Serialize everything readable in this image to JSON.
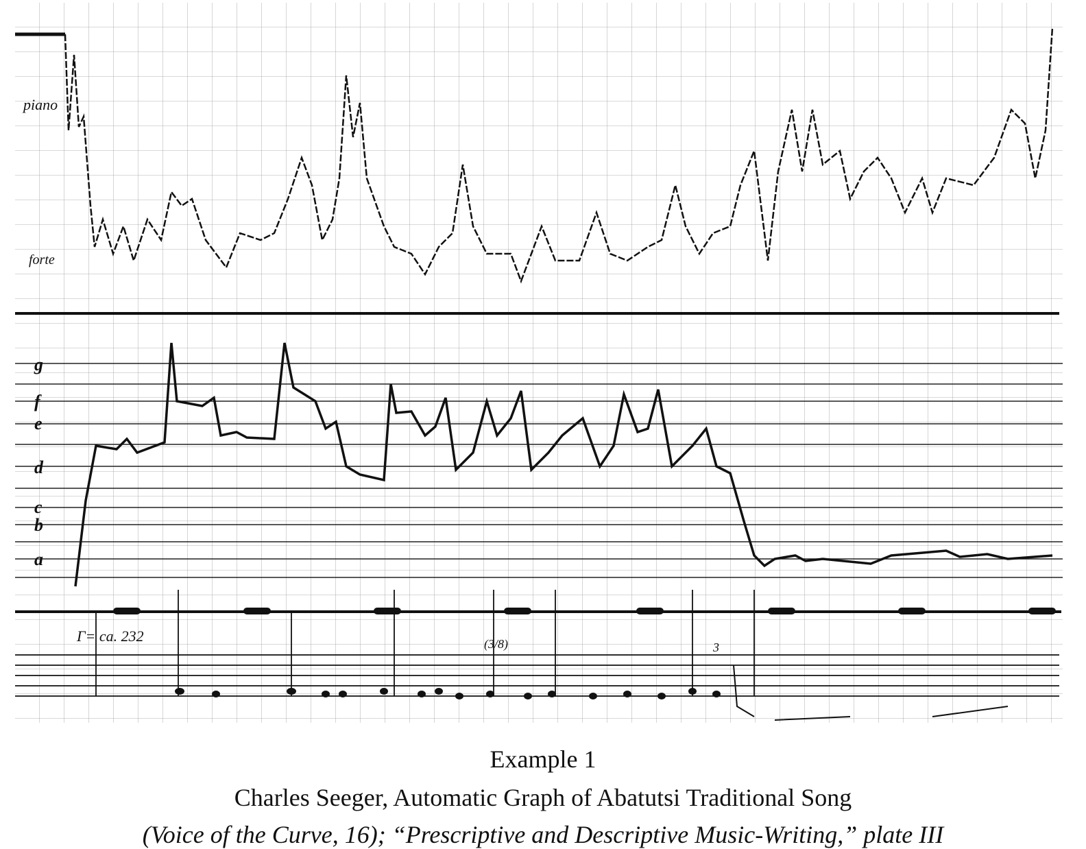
{
  "figure": {
    "dynamics_labels": [
      "piano",
      "forte"
    ],
    "pitch_labels": [
      "g",
      "f",
      "e",
      "d",
      "c",
      "b",
      "a"
    ],
    "tempo": "Γ= ca. 232",
    "time_signature": "(3/8)",
    "triplet": "3"
  },
  "caption": {
    "title": "Example 1",
    "lines": [
      "Charles Seeger, Automatic Graph of Abatutsi Traditional Song",
      "(Voice of the Curve, 16); “Prescriptive and Descriptive Music-Writing,” plate III"
    ]
  }
}
